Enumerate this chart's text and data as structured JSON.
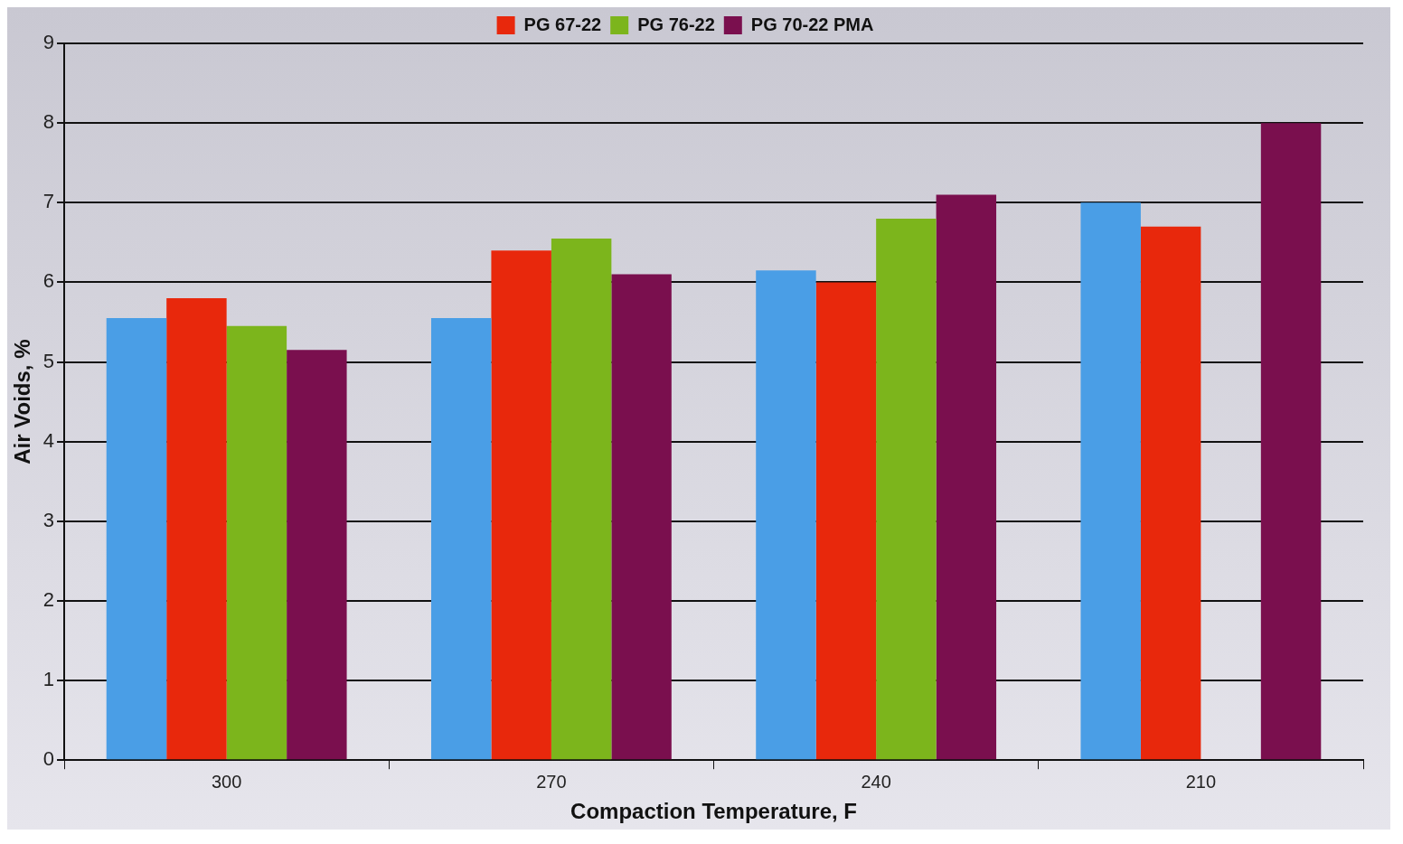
{
  "chart_data": {
    "type": "bar",
    "xlabel": "Compaction Temperature, F",
    "ylabel": "Air Voids, %",
    "categories": [
      "300",
      "270",
      "240",
      "210"
    ],
    "series": [
      {
        "color": "#4a9ee6",
        "values": [
          5.55,
          5.55,
          6.15,
          7.0
        ]
      },
      {
        "name": "PG 67-22",
        "color": "#e8280c",
        "values": [
          5.8,
          6.4,
          6.0,
          6.7
        ]
      },
      {
        "name": "PG 76-22",
        "color": "#7cb51c",
        "values": [
          5.45,
          6.55,
          6.8,
          null
        ]
      },
      {
        "name": "PG 70-22 PMA",
        "color": "#7a0f4e",
        "values": [
          5.15,
          6.1,
          7.1,
          8.0
        ]
      }
    ],
    "ylim": [
      0,
      9
    ],
    "yticks": [
      0,
      1,
      2,
      3,
      4,
      5,
      6,
      7,
      8,
      9
    ],
    "grid": "y",
    "legend": "top"
  }
}
